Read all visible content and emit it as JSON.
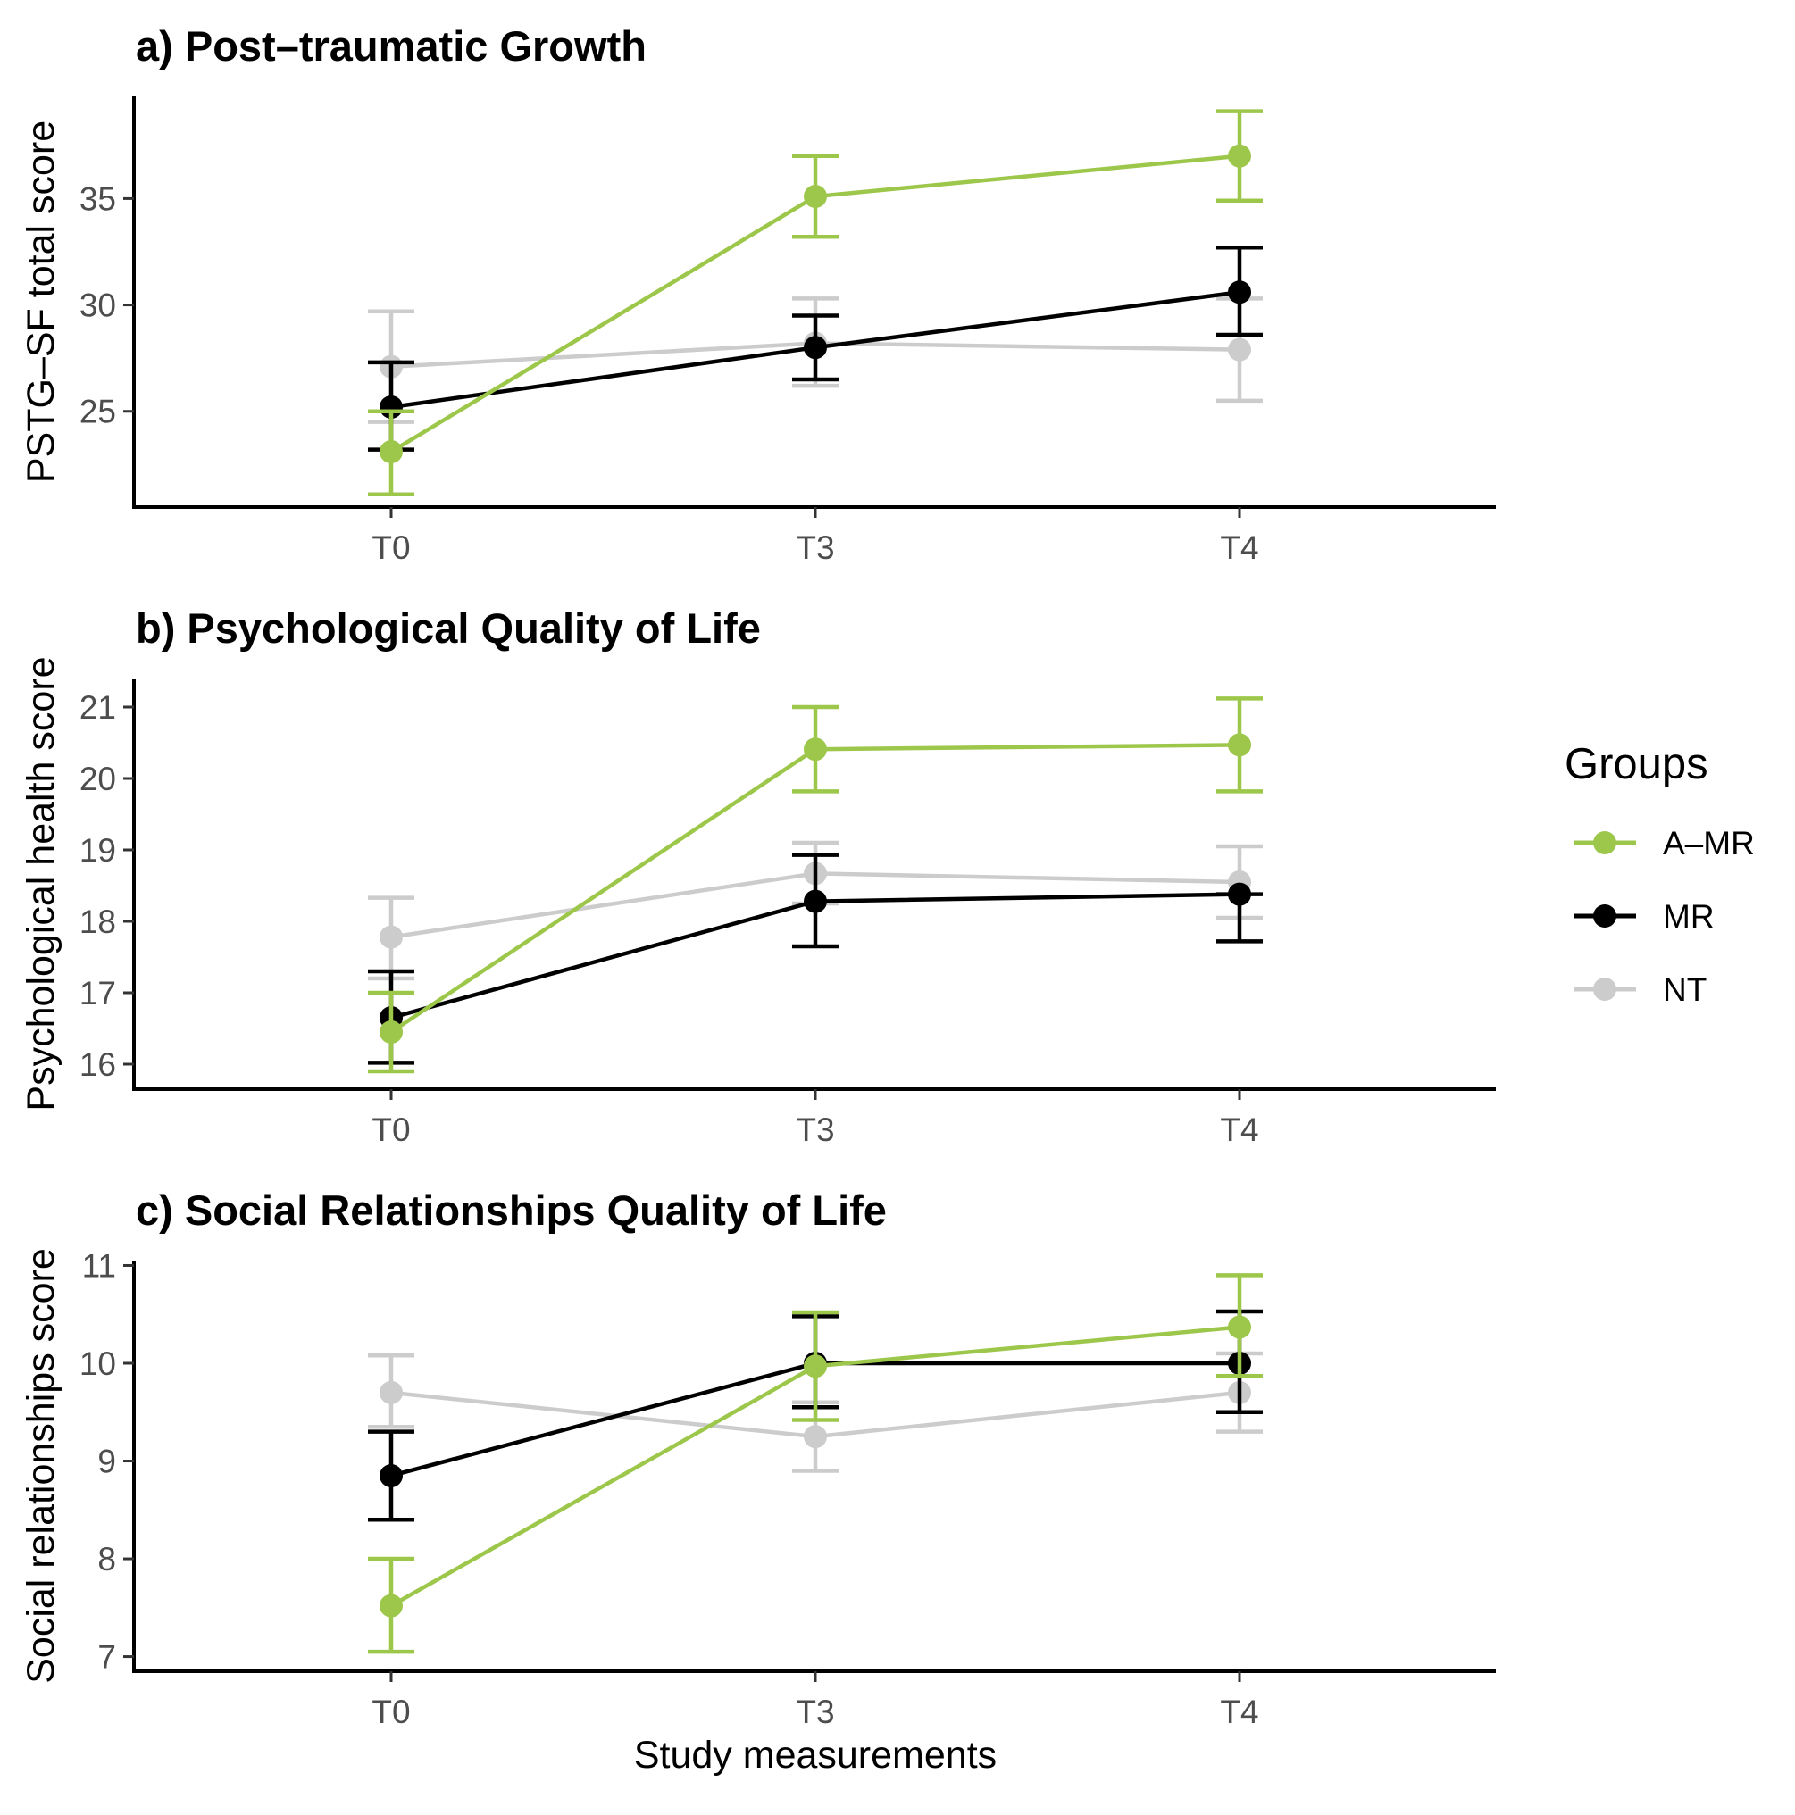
{
  "chart_data": [
    {
      "type": "line",
      "title": "a) Post–traumatic Growth",
      "xlabel": "",
      "ylabel": "PSTG–SF total score",
      "categories": [
        "T0",
        "T3",
        "T4"
      ],
      "yticks": [
        25,
        30,
        35
      ],
      "ylim": [
        20.5,
        39.8
      ],
      "series": [
        {
          "name": "NT",
          "values": [
            27.1,
            28.2,
            27.9
          ],
          "ci_low": [
            24.5,
            26.2,
            25.5
          ],
          "ci_high": [
            29.7,
            30.3,
            30.3
          ]
        },
        {
          "name": "MR",
          "values": [
            25.2,
            28.0,
            30.6
          ],
          "ci_low": [
            23.2,
            26.5,
            28.6
          ],
          "ci_high": [
            27.3,
            29.5,
            32.7
          ]
        },
        {
          "name": "A–MR",
          "values": [
            23.1,
            35.1,
            37.0
          ],
          "ci_low": [
            21.1,
            33.2,
            34.9
          ],
          "ci_high": [
            25.0,
            37.0,
            39.1
          ]
        }
      ]
    },
    {
      "type": "line",
      "title": "b) Psychological Quality of Life",
      "xlabel": "",
      "ylabel": "Psychological health score",
      "categories": [
        "T0",
        "T3",
        "T4"
      ],
      "yticks": [
        16,
        17,
        18,
        19,
        20,
        21
      ],
      "ylim": [
        15.65,
        21.4
      ],
      "series": [
        {
          "name": "NT",
          "values": [
            17.78,
            18.67,
            18.55
          ],
          "ci_low": [
            17.2,
            18.25,
            18.05
          ],
          "ci_high": [
            18.33,
            19.1,
            19.05
          ]
        },
        {
          "name": "MR",
          "values": [
            16.65,
            18.28,
            18.38
          ],
          "ci_low": [
            16.02,
            17.65,
            17.72
          ],
          "ci_high": [
            17.3,
            18.93,
            18.38
          ]
        },
        {
          "name": "A–MR",
          "values": [
            16.45,
            20.41,
            20.47
          ],
          "ci_low": [
            15.9,
            19.82,
            19.82
          ],
          "ci_high": [
            17.0,
            21.0,
            21.12
          ]
        }
      ]
    },
    {
      "type": "line",
      "title": "c) Social Relationships Quality of Life",
      "xlabel": "Study measurements",
      "ylabel": "Social relationships score",
      "categories": [
        "T0",
        "T3",
        "T4"
      ],
      "yticks": [
        7,
        8,
        9,
        10,
        11
      ],
      "ylim": [
        6.85,
        11.05
      ],
      "series": [
        {
          "name": "NT",
          "values": [
            9.7,
            9.25,
            9.7
          ],
          "ci_low": [
            9.35,
            8.9,
            9.3
          ],
          "ci_high": [
            10.08,
            9.6,
            10.1
          ]
        },
        {
          "name": "MR",
          "values": [
            8.85,
            10.0,
            10.0
          ],
          "ci_low": [
            8.4,
            9.55,
            9.5
          ],
          "ci_high": [
            9.3,
            10.48,
            10.53
          ]
        },
        {
          "name": "A–MR",
          "values": [
            7.52,
            9.97,
            10.37
          ],
          "ci_low": [
            7.05,
            9.42,
            9.87
          ],
          "ci_high": [
            8.0,
            10.52,
            10.9
          ]
        }
      ]
    }
  ],
  "legend": {
    "title": "Groups",
    "items": [
      {
        "name": "A–MR",
        "color": "#9dc74b"
      },
      {
        "name": "MR",
        "color": "#000000"
      },
      {
        "name": "NT",
        "color": "#cccccc"
      }
    ]
  },
  "colors": {
    "A–MR": "#9dc74b",
    "MR": "#000000",
    "NT": "#cccccc"
  }
}
